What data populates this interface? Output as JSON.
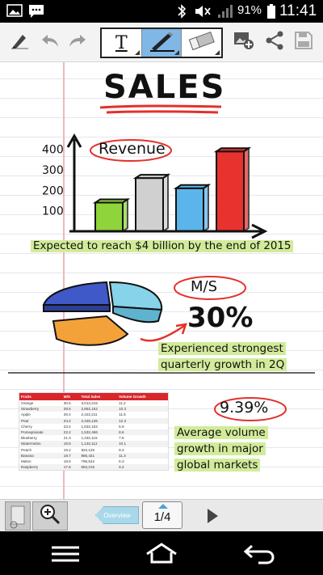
{
  "status_bar": {
    "battery": "91%",
    "time": "11:41",
    "icons": [
      "gallery-icon",
      "message-icon",
      "bluetooth-icon",
      "mute-icon",
      "signal-icon",
      "battery-icon"
    ]
  },
  "toolbar": {
    "left_icons": [
      "pen-mode-icon",
      "undo-icon",
      "redo-icon"
    ],
    "tools": [
      "text-tool",
      "pen-tool",
      "eraser-tool"
    ],
    "right_icons": [
      "add-image-icon",
      "share-icon",
      "save-icon"
    ],
    "text_tool_glyph": "T",
    "eraser_label": "Erase"
  },
  "note": {
    "title": "SALES",
    "revenue_label": "Revenue",
    "revenue_caption": "Expected to reach $4 billion by the end of 2015",
    "ms_label": "M/S",
    "ms_value": "30%",
    "ms_caption_line1": "Experienced strongest",
    "ms_caption_line2": "quarterly growth in 2Q",
    "growth_value": "9.39%",
    "growth_line1": "Average volume",
    "growth_line2": "growth in major",
    "growth_line3": "global markets"
  },
  "chart_data": {
    "type": "bar",
    "categories": [
      "",
      "",
      "",
      ""
    ],
    "values": [
      140,
      260,
      210,
      390
    ],
    "colors": [
      "#8fd43b",
      "#d0d0d0",
      "#5bb5ea",
      "#e8322d"
    ],
    "yticks": [
      "100",
      "200",
      "300",
      "400"
    ],
    "ylim": [
      0,
      450
    ],
    "title": "Revenue"
  },
  "pie_data": {
    "type": "pie",
    "colors": [
      "#3f59c9",
      "#87d3ea",
      "#f3a23a"
    ]
  },
  "fruit_table": {
    "columns": [
      "Fruits",
      "M/S",
      "Total Sales",
      "Volume Growth"
    ],
    "rows": [
      [
        "Orange",
        "30.5",
        "3,013,215",
        "11.2"
      ],
      [
        "Strawberry",
        "28.6",
        "2,852,152",
        "10.3"
      ],
      [
        "Apple",
        "26.4",
        "2,422,211",
        "11.5"
      ],
      [
        "Pear",
        "24.2",
        "2,325,135",
        "12.3"
      ],
      [
        "Cherry",
        "23.4",
        "1,632,152",
        "5.9"
      ],
      [
        "Pomegranate",
        "22.2",
        "1,532,486",
        "8.6"
      ],
      [
        "Blueberry",
        "21.3",
        "1,432,115",
        "7.5"
      ],
      [
        "Watermelon",
        "19.5",
        "1,132,112",
        "10.1"
      ],
      [
        "Peach",
        "19.2",
        "922,125",
        "9.3"
      ],
      [
        "Banana",
        "18.7",
        "865,421",
        "11.3"
      ],
      [
        "Melon",
        "18.5",
        "796,542",
        "5.3"
      ],
      [
        "Raspberry",
        "17.6",
        "653,215",
        "9.2"
      ]
    ]
  },
  "page_bar": {
    "page_indicator": "1/4",
    "prev_label": "Overview"
  },
  "nav_bar": {
    "icons": [
      "menu-icon",
      "home-icon",
      "back-icon"
    ]
  }
}
